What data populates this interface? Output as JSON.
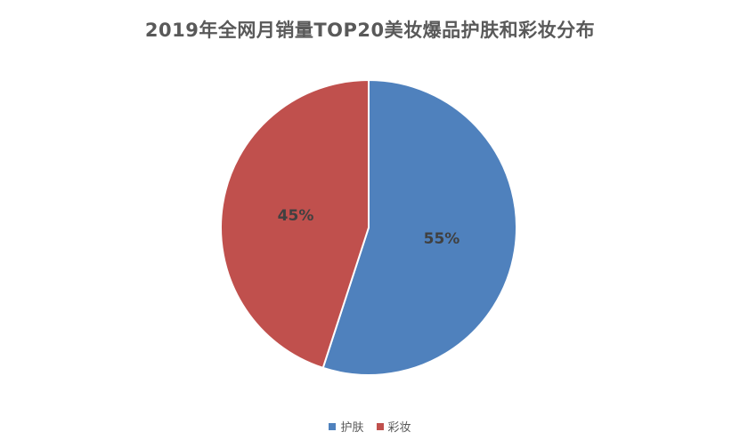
{
  "chart_data": {
    "type": "pie",
    "title": "2019年全网月销量TOP20美妆爆品护肤和彩妆分布",
    "slices": [
      {
        "name": "护肤",
        "value": 55,
        "label": "55%",
        "color": "#4F81BD"
      },
      {
        "name": "彩妆",
        "value": 45,
        "label": "45%",
        "color": "#C0504D"
      }
    ],
    "legend_position": "bottom"
  }
}
